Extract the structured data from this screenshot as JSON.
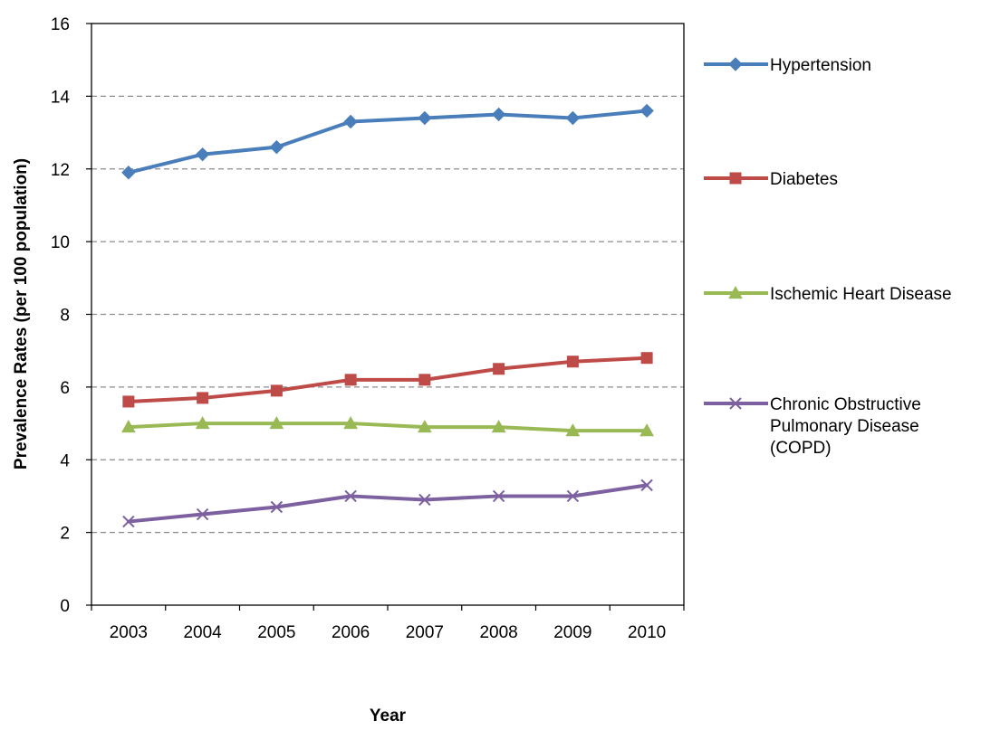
{
  "chart_data": {
    "type": "line",
    "title": "",
    "xlabel": "Year",
    "ylabel": "Prevalence Rates (per 100 population)",
    "categories": [
      "2003",
      "2004",
      "2005",
      "2006",
      "2007",
      "2008",
      "2009",
      "2010"
    ],
    "ylim": [
      0,
      16
    ],
    "yticks": [
      0,
      2,
      4,
      6,
      8,
      10,
      12,
      14,
      16
    ],
    "ytick_labels": [
      "0",
      "2",
      "4",
      "6",
      "8",
      "10",
      "12",
      "14",
      "16"
    ],
    "grid": "horizontal dashed",
    "legend_position": "right",
    "series": [
      {
        "name": "Hypertension",
        "values": [
          11.9,
          12.4,
          12.6,
          13.3,
          13.4,
          13.5,
          13.4,
          13.6
        ],
        "color": "#4a7ebb",
        "marker": "diamond",
        "legend_lines": [
          "Hypertension"
        ]
      },
      {
        "name": "Diabetes",
        "values": [
          5.6,
          5.7,
          5.9,
          6.2,
          6.2,
          6.5,
          6.7,
          6.8
        ],
        "color": "#be4b48",
        "marker": "square",
        "legend_lines": [
          "Diabetes"
        ]
      },
      {
        "name": "Ischemic Heart Disease",
        "values": [
          4.9,
          5.0,
          5.0,
          5.0,
          4.9,
          4.9,
          4.8,
          4.8
        ],
        "color": "#98b954",
        "marker": "triangle",
        "legend_lines": [
          "Ischemic Heart Disease"
        ]
      },
      {
        "name": "Chronic Obstructive Pulmonary Disease (COPD)",
        "values": [
          2.3,
          2.5,
          2.7,
          3.0,
          2.9,
          3.0,
          3.0,
          3.3
        ],
        "color": "#7d60a0",
        "marker": "x",
        "legend_lines": [
          "Chronic Obstructive",
          "Pulmonary Disease",
          "(COPD)"
        ]
      }
    ]
  }
}
